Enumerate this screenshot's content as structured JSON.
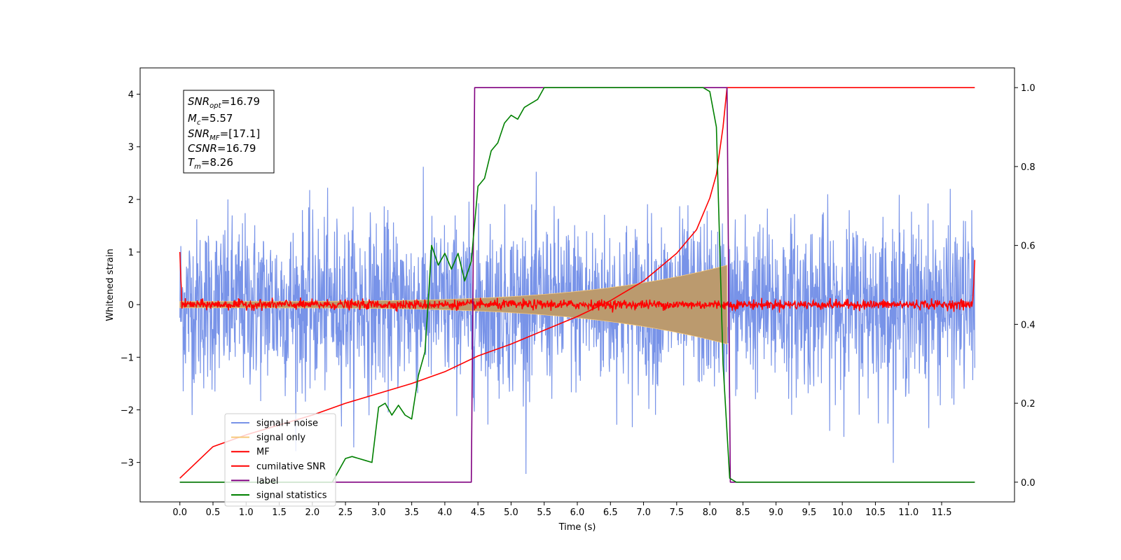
{
  "chart_data": {
    "type": "line",
    "xlabel": "Time (s)",
    "ylabel": "Whitened strain",
    "x_ticks": [
      "0.0",
      "0.5",
      "1.0",
      "1.5",
      "2.0",
      "2.5",
      "3.0",
      "3.5",
      "4.0",
      "4.5",
      "5.0",
      "5.5",
      "6.0",
      "6.5",
      "7.0",
      "7.5",
      "8.0",
      "8.5",
      "9.0",
      "9.5",
      "10.0",
      "10.5",
      "11.0",
      "11.5"
    ],
    "y_left_ticks": [
      "−3",
      "−2",
      "−1",
      "0",
      "1",
      "2",
      "3",
      "4"
    ],
    "y_right_ticks": [
      "0.0",
      "0.2",
      "0.4",
      "0.6",
      "0.8",
      "1.0"
    ],
    "xlim": [
      -0.6,
      12.6
    ],
    "ylim_left": [
      -3.75,
      4.5
    ],
    "ylim_right": [
      -0.05,
      1.05
    ],
    "x_range": [
      0,
      12.0
    ],
    "legend_position": "lower-left",
    "info_box": {
      "snr_opt": {
        "base": "SNR",
        "sub": "opt",
        "value": "=16.79"
      },
      "mc": {
        "base": "M",
        "sub": "c",
        "value": "=5.57"
      },
      "snr_mf": {
        "base": "SNR",
        "sub": "MF",
        "value": "=[17.1]"
      },
      "csnr": {
        "base": "CSNR",
        "value": "=16.79"
      },
      "tm": {
        "base": "T",
        "sub": "m",
        "value": "=8.26"
      }
    },
    "series": [
      {
        "name": "signal+ noise",
        "color": "#7893e8",
        "axis": "left",
        "description_values": {
          "noise_std": 0.8,
          "mean": 0.0
        }
      },
      {
        "name": "signal only",
        "color": "#f7c97b",
        "axis": "left",
        "fill_color": "#bb9a6e",
        "envelope": {
          "start": 0.0,
          "end": 8.26,
          "amp_start": 0.06,
          "amp_end": 0.75
        }
      },
      {
        "name": "MF",
        "color": "#ff0000",
        "axis": "left",
        "description_values": {
          "noise_std": 0.045,
          "mean": 0.0,
          "edge_value": 1.0
        }
      },
      {
        "name": "cumilative SNR",
        "color": "#ff0000",
        "axis": "right",
        "points": [
          [
            0.0,
            0.01
          ],
          [
            0.5,
            0.09
          ],
          [
            1.0,
            0.12
          ],
          [
            1.5,
            0.145
          ],
          [
            2.0,
            0.17
          ],
          [
            2.5,
            0.2
          ],
          [
            3.0,
            0.225
          ],
          [
            3.5,
            0.25
          ],
          [
            4.0,
            0.28
          ],
          [
            4.5,
            0.32
          ],
          [
            5.0,
            0.35
          ],
          [
            5.5,
            0.385
          ],
          [
            6.0,
            0.42
          ],
          [
            6.5,
            0.46
          ],
          [
            7.0,
            0.51
          ],
          [
            7.5,
            0.58
          ],
          [
            7.8,
            0.64
          ],
          [
            8.0,
            0.72
          ],
          [
            8.1,
            0.78
          ],
          [
            8.2,
            0.9
          ],
          [
            8.26,
            1.0
          ],
          [
            12.0,
            1.0
          ]
        ]
      },
      {
        "name": "label",
        "color": "#800080",
        "axis": "right",
        "points": [
          [
            0.0,
            0.0
          ],
          [
            4.4,
            0.0
          ],
          [
            4.45,
            1.0
          ],
          [
            8.26,
            1.0
          ],
          [
            8.31,
            0.0
          ],
          [
            12.0,
            0.0
          ]
        ]
      },
      {
        "name": "signal statistics",
        "color": "#008000",
        "axis": "right",
        "points": [
          [
            0.0,
            0.0
          ],
          [
            2.3,
            0.0
          ],
          [
            2.5,
            0.06
          ],
          [
            2.6,
            0.065
          ],
          [
            2.7,
            0.06
          ],
          [
            2.8,
            0.055
          ],
          [
            2.9,
            0.05
          ],
          [
            3.0,
            0.19
          ],
          [
            3.1,
            0.2
          ],
          [
            3.2,
            0.17
          ],
          [
            3.3,
            0.195
          ],
          [
            3.4,
            0.17
          ],
          [
            3.5,
            0.16
          ],
          [
            3.6,
            0.27
          ],
          [
            3.7,
            0.33
          ],
          [
            3.75,
            0.46
          ],
          [
            3.8,
            0.6
          ],
          [
            3.9,
            0.55
          ],
          [
            4.0,
            0.58
          ],
          [
            4.1,
            0.54
          ],
          [
            4.2,
            0.58
          ],
          [
            4.3,
            0.51
          ],
          [
            4.4,
            0.56
          ],
          [
            4.5,
            0.75
          ],
          [
            4.6,
            0.77
          ],
          [
            4.7,
            0.84
          ],
          [
            4.8,
            0.86
          ],
          [
            4.9,
            0.91
          ],
          [
            5.0,
            0.93
          ],
          [
            5.1,
            0.92
          ],
          [
            5.2,
            0.95
          ],
          [
            5.3,
            0.96
          ],
          [
            5.4,
            0.97
          ],
          [
            5.5,
            1.0
          ],
          [
            5.8,
            1.0
          ],
          [
            6.2,
            1.0
          ],
          [
            6.5,
            1.0
          ],
          [
            7.5,
            1.0
          ],
          [
            7.9,
            1.0
          ],
          [
            8.0,
            0.99
          ],
          [
            8.1,
            0.9
          ],
          [
            8.2,
            0.3
          ],
          [
            8.3,
            0.01
          ],
          [
            8.4,
            0.0
          ],
          [
            12.0,
            0.0
          ]
        ]
      }
    ]
  }
}
